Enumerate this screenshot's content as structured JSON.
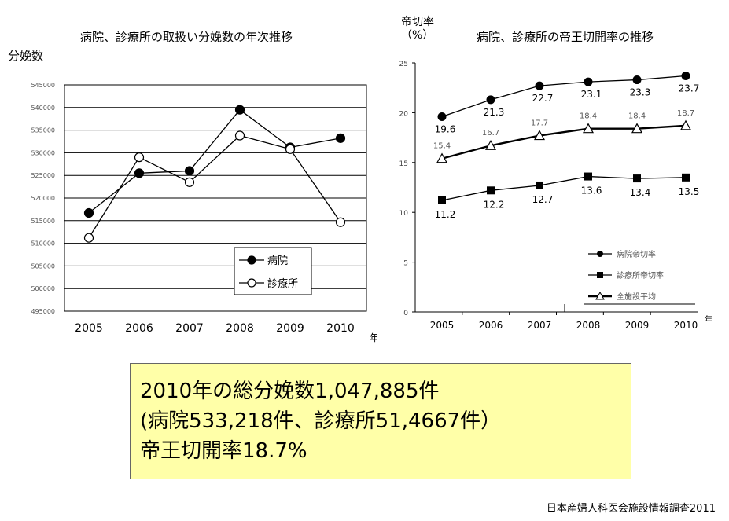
{
  "chart_data": [
    {
      "type": "line",
      "title": "病院、診療所の取扱い分娩数の年次推移",
      "ylabel": "分娩数",
      "xlabel": "年",
      "categories": [
        "2005",
        "2006",
        "2007",
        "2008",
        "2009",
        "2010"
      ],
      "ylim": [
        495000,
        545000
      ],
      "yticks": [
        "545000",
        "540000",
        "535000",
        "530000",
        "525000",
        "520000",
        "515000",
        "510000",
        "505000",
        "500000",
        "495000"
      ],
      "grid": true,
      "legend_position": "bottom-right",
      "series": [
        {
          "name": "病院",
          "marker": "filled-circle",
          "values": [
            516700,
            525500,
            526000,
            539500,
            531200,
            533218
          ]
        },
        {
          "name": "診療所",
          "marker": "open-circle",
          "values": [
            511200,
            529000,
            523500,
            533800,
            530800,
            514667
          ]
        }
      ]
    },
    {
      "type": "line",
      "title": "病院、診療所の帝王切開率の推移",
      "ylabel": "帝切率\n（%）",
      "xlabel": "年",
      "categories": [
        "2005",
        "2006",
        "2007",
        "2008",
        "2009",
        "2010"
      ],
      "ylim": [
        0,
        25
      ],
      "yticks": [
        "25",
        "20",
        "15",
        "10",
        "5",
        "0"
      ],
      "grid": false,
      "legend_position": "bottom-right",
      "series": [
        {
          "name": "病院帝切率",
          "marker": "filled-circle",
          "values": [
            19.6,
            21.3,
            22.7,
            23.1,
            23.3,
            23.7
          ],
          "labels": [
            "19.6",
            "21.3",
            "22.7",
            "23.1",
            "23.3",
            "23.7"
          ]
        },
        {
          "name": "全施設平均",
          "marker": "open-triangle",
          "values": [
            15.4,
            16.7,
            17.7,
            18.4,
            18.4,
            18.7
          ],
          "labels": [
            "15.4",
            "16.7",
            "17.7",
            "18.4",
            "18.4",
            "18.7"
          ]
        },
        {
          "name": "診療所帝切率",
          "marker": "filled-square",
          "values": [
            11.2,
            12.2,
            12.7,
            13.6,
            13.4,
            13.5
          ],
          "labels": [
            "11.2",
            "12.2",
            "12.7",
            "13.6",
            "13.4",
            "13.5"
          ]
        }
      ]
    }
  ],
  "summary": {
    "line1": "2010年の総分娩数1,047,885件",
    "line2": "(病院533,218件、診療所51,4667件）",
    "line3": "帝王切開率18.7%"
  },
  "source": "日本産婦人科医会施設情報調査2011"
}
